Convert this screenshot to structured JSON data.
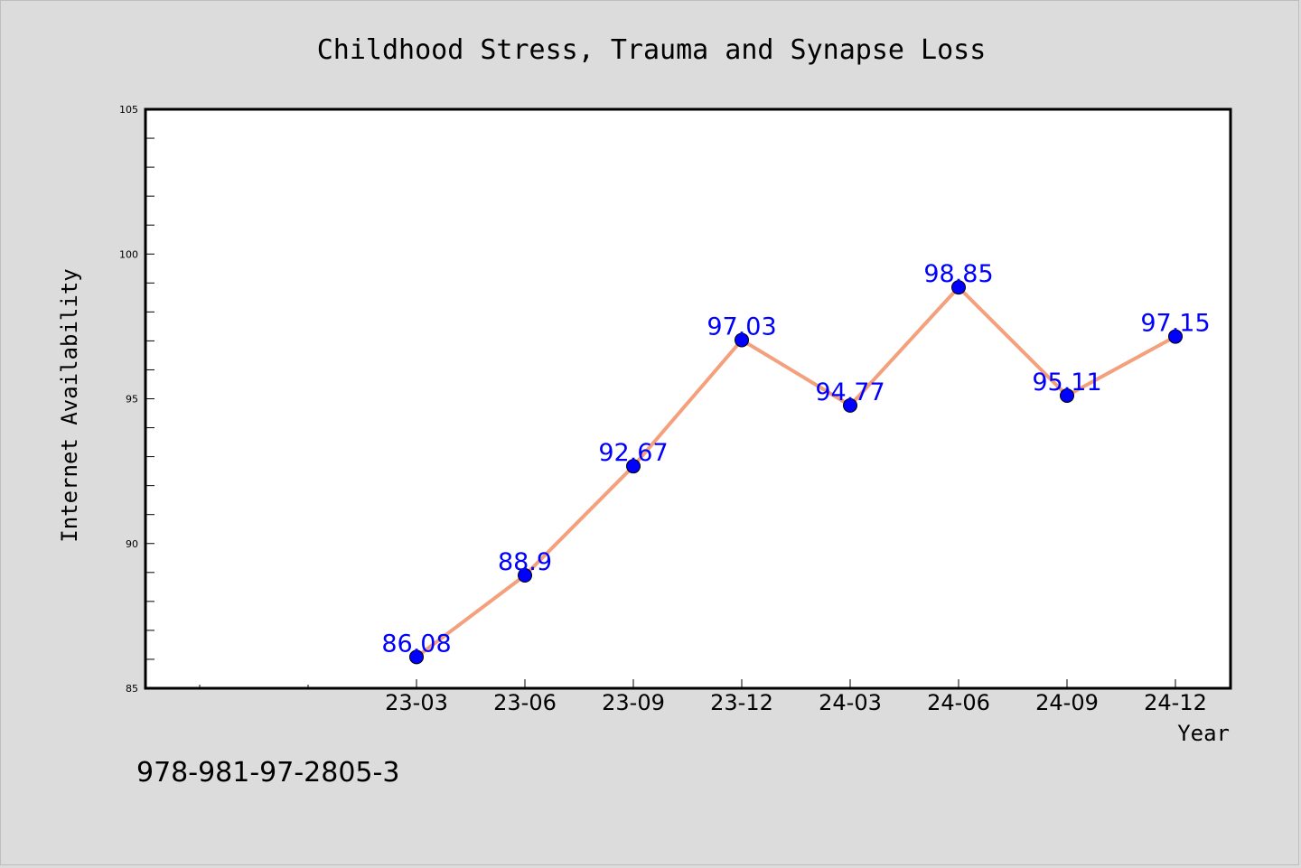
{
  "chart_data": {
    "type": "line",
    "title": "Childhood Stress, Trauma and Synapse Loss",
    "xlabel": "Year",
    "ylabel": "Internet Availability",
    "categories": [
      "23-03",
      "23-06",
      "23-09",
      "23-12",
      "24-03",
      "24-06",
      "24-09",
      "24-12"
    ],
    "series": [
      {
        "values": [
          86.08,
          88.9,
          92.67,
          97.03,
          94.77,
          98.85,
          95.11,
          97.15
        ]
      }
    ],
    "data_labels": [
      "86.08",
      "88.9",
      "92.67",
      "97.03",
      "94.77",
      "98.85",
      "95.11",
      "97.15"
    ],
    "ylim": [
      85,
      105
    ],
    "yticks": [
      85,
      90,
      95,
      100,
      105
    ],
    "grid": false,
    "line_color": "#f4a07c",
    "marker_color": "#0000ff",
    "label_color": "#0000ff"
  },
  "footer": {
    "isbn": "978-981-97-2805-3"
  }
}
